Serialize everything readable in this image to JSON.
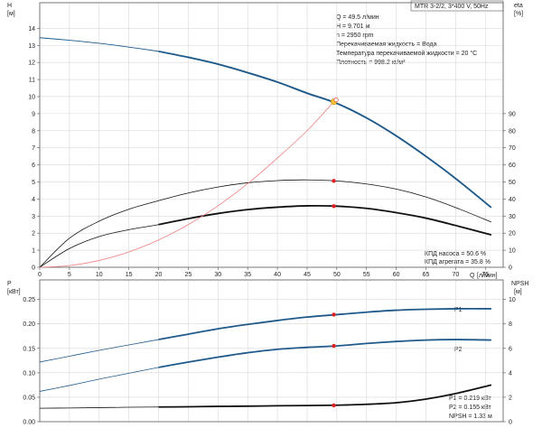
{
  "colors": {
    "blue": "#1f5a8a",
    "black": "#111111",
    "red_curve": "#f08080",
    "op_point": "#e02020",
    "marker_fill": "#f5c23a"
  },
  "chart_data": [
    {
      "type": "line",
      "title": "MTR 3-2/2, 3*400 V, 50Hz",
      "xlabel": "Q",
      "xunit": "[л/мин]",
      "ylabel": "H",
      "yunit": "[м]",
      "y2label": "eta",
      "y2unit": "[%]",
      "xlim": [
        0,
        78
      ],
      "ylim": [
        0,
        15.5
      ],
      "y2lim": [
        0,
        155
      ],
      "x_ticks": [
        0,
        5,
        10,
        15,
        20,
        25,
        30,
        35,
        40,
        45,
        50,
        55,
        60,
        65,
        70,
        75
      ],
      "y_ticks": [
        0,
        1,
        2,
        3,
        4,
        5,
        6,
        7,
        8,
        9,
        10,
        11,
        12,
        13,
        14
      ],
      "y2_ticks": [
        0,
        10,
        20,
        30,
        40,
        50,
        60,
        70,
        80,
        90
      ],
      "grid": true,
      "info_lines": [
        "Q = 49.5 л/мин",
        "H = 9.701 м",
        "n = 2950 rpm",
        "Перекачиваемая жидкость = Вода",
        "Температура перекачиваемой жидкости = 20 °C",
        "Плотность = 998.2 кг/м³"
      ],
      "eff_labels": [
        "КПД насоса = 50.6 %",
        "КПД агрегата = 35.8 %"
      ],
      "series": [
        {
          "id": "H",
          "color": "blue",
          "axis": "y",
          "thin_x": [
            0,
            5,
            10,
            15,
            20
          ],
          "thin_y": [
            13.45,
            13.3,
            13.12,
            12.9,
            12.65
          ],
          "x": [
            20,
            25,
            30,
            35,
            40,
            45,
            50,
            55,
            60,
            65,
            70,
            76
          ],
          "y": [
            12.65,
            12.3,
            11.9,
            11.4,
            10.85,
            10.2,
            9.6,
            8.75,
            7.7,
            6.5,
            5.2,
            3.5
          ]
        },
        {
          "id": "eta_pump",
          "color": "black",
          "axis": "y2",
          "x": [
            0,
            5,
            10,
            15,
            20,
            25,
            30,
            35,
            40,
            45,
            50,
            55,
            60,
            65,
            70,
            76
          ],
          "y": [
            0,
            17,
            27,
            34,
            39,
            43.5,
            47,
            49.5,
            50.8,
            51.2,
            50.6,
            48.8,
            45.8,
            41.2,
            35,
            26.5
          ]
        },
        {
          "id": "eta_unit",
          "color": "black",
          "axis": "y2",
          "bold_from": 20,
          "x": [
            0,
            5,
            10,
            15,
            20,
            25,
            30,
            35,
            40,
            45,
            50,
            55,
            60,
            65,
            70,
            76
          ],
          "y": [
            0,
            11,
            18,
            22,
            25,
            28.5,
            31.5,
            33.8,
            35.2,
            36,
            35.8,
            34.5,
            32,
            28.8,
            24.5,
            19
          ]
        },
        {
          "id": "system_curve",
          "color": "red_curve",
          "axis": "y",
          "x": [
            0,
            5,
            10,
            15,
            20,
            25,
            30,
            35,
            40,
            45,
            49.5
          ],
          "y": [
            0,
            0.1,
            0.4,
            0.9,
            1.6,
            2.5,
            3.6,
            4.9,
            6.4,
            8.0,
            9.7
          ]
        }
      ],
      "points": [
        {
          "x": 49.5,
          "y": 9.7,
          "axis": "y",
          "style": "marker"
        },
        {
          "x": 49.5,
          "y": 50.6,
          "axis": "y2",
          "style": "op"
        },
        {
          "x": 49.5,
          "y": 35.8,
          "axis": "y2",
          "style": "op"
        }
      ]
    },
    {
      "type": "line",
      "xlabel": "Q",
      "xunit": "[л/мин]",
      "ylabel": "P",
      "yunit": "[кВт]",
      "y2label": "NPSH",
      "y2unit": "[м]",
      "xlim": [
        0,
        78
      ],
      "ylim": [
        0,
        0.29
      ],
      "y2lim": [
        0,
        11.6
      ],
      "y_ticks": [
        0,
        0.05,
        0.1,
        0.15,
        0.2,
        0.25
      ],
      "y_tick_labels": [
        "0.00",
        "0.05",
        "0.10",
        "0.15",
        "0.20",
        "0.25"
      ],
      "y2_ticks": [
        0,
        2,
        4,
        6,
        8,
        10
      ],
      "grid": true,
      "info_lines": [
        "P1 = 0.219 кВт",
        "P2 = 0.155 кВт",
        "NPSH = 1.33 м"
      ],
      "series": [
        {
          "id": "P1",
          "name": "P1",
          "color": "blue",
          "axis": "y",
          "bold_from": 20,
          "x": [
            0,
            5,
            10,
            15,
            20,
            25,
            30,
            35,
            40,
            45,
            50,
            55,
            60,
            65,
            70,
            76
          ],
          "y": [
            0.122,
            0.134,
            0.146,
            0.157,
            0.168,
            0.179,
            0.19,
            0.199,
            0.207,
            0.214,
            0.219,
            0.224,
            0.228,
            0.23,
            0.231,
            0.231
          ]
        },
        {
          "id": "P2",
          "name": "P2",
          "color": "blue",
          "axis": "y",
          "bold_from": 20,
          "x": [
            0,
            5,
            10,
            15,
            20,
            25,
            30,
            35,
            40,
            45,
            50,
            55,
            60,
            65,
            70,
            76
          ],
          "y": [
            0.062,
            0.074,
            0.087,
            0.099,
            0.111,
            0.122,
            0.132,
            0.141,
            0.148,
            0.152,
            0.155,
            0.16,
            0.164,
            0.167,
            0.168,
            0.167
          ]
        },
        {
          "id": "NPSH",
          "color": "black",
          "axis": "y2",
          "bold_from": 20,
          "x": [
            0,
            5,
            10,
            15,
            20,
            25,
            30,
            35,
            40,
            45,
            50,
            55,
            60,
            65,
            70,
            76
          ],
          "y": [
            1.1,
            1.12,
            1.15,
            1.18,
            1.2,
            1.22,
            1.25,
            1.27,
            1.3,
            1.32,
            1.35,
            1.42,
            1.55,
            1.85,
            2.3,
            3.0
          ]
        }
      ],
      "points": [
        {
          "x": 49.5,
          "y": 0.219,
          "axis": "y",
          "style": "op"
        },
        {
          "x": 49.5,
          "y": 0.155,
          "axis": "y",
          "style": "op"
        },
        {
          "x": 49.5,
          "y": 1.33,
          "axis": "y2",
          "style": "op"
        }
      ]
    }
  ]
}
